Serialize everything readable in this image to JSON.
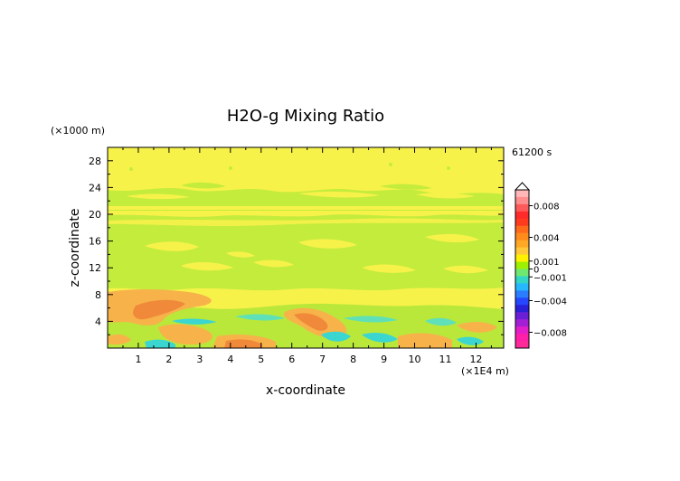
{
  "chart_data": {
    "type": "heatmap",
    "title": "H2O-g Mixing Ratio",
    "xlabel": "x-coordinate",
    "ylabel": "z-coordinate",
    "x_unit": "(×1E4 m)",
    "y_unit": "(×1000 m)",
    "time_label": "61200 s",
    "xlim": [
      0,
      12.9
    ],
    "ylim": [
      0,
      30
    ],
    "x_ticks": [
      1,
      2,
      3,
      4,
      5,
      6,
      7,
      8,
      9,
      10,
      11,
      12
    ],
    "y_ticks": [
      4,
      8,
      12,
      16,
      20,
      24,
      28
    ],
    "colorbar": {
      "range": [
        -0.01,
        0.01
      ],
      "tick_values": [
        0.008,
        0.004,
        0.001,
        0,
        -0.001,
        -0.004,
        -0.008
      ],
      "tick_labels": [
        "0.008",
        "0.004",
        "0.001",
        "0",
        "−0.001",
        "−0.004",
        "−0.008"
      ],
      "colors_top_to_bottom": [
        "#ffb7b7",
        "#ff8e8e",
        "#ff5a5a",
        "#ff2a2a",
        "#ff3b1f",
        "#ff6a1a",
        "#ff8c1a",
        "#ffa826",
        "#ffc83a",
        "#fff200",
        "#9ff000",
        "#70e870",
        "#33d6c4",
        "#26b8ff",
        "#2a7dff",
        "#2447ff",
        "#2a20d8",
        "#6a1fd6",
        "#a31fd6",
        "#e21ec8",
        "#ff1fa8",
        "#ff2a9a"
      ]
    },
    "regions": [
      {
        "label": "background",
        "value": 0.0005,
        "color": "#f7f24a"
      },
      {
        "label": "upper green band",
        "value": 0,
        "color": "#c4ec3c",
        "x": [
          0,
          12.9
        ],
        "z": [
          19.5,
          23
        ]
      },
      {
        "label": "mid green band",
        "value": 0,
        "color": "#c4ec3c",
        "x": [
          0,
          12.9
        ],
        "z": [
          8.5,
          18
        ]
      },
      {
        "label": "low green band",
        "value": 0,
        "color": "#b9e83a",
        "x": [
          0,
          12.9
        ],
        "z": [
          0,
          6
        ]
      },
      {
        "label": "left orange plume",
        "value": 0.002,
        "color": "#f7b34a",
        "x": [
          0,
          3.2
        ],
        "z": [
          5.5,
          8.5
        ]
      },
      {
        "label": "right orange plume",
        "value": 0.002,
        "color": "#f7b34a",
        "x": [
          5.7,
          8.4
        ],
        "z": [
          1.5,
          6
        ]
      },
      {
        "label": "near-surface cyan",
        "value": -0.002,
        "color": "#3cd6d0",
        "x": [
          0,
          12.9
        ],
        "z": [
          0,
          4
        ]
      }
    ]
  }
}
